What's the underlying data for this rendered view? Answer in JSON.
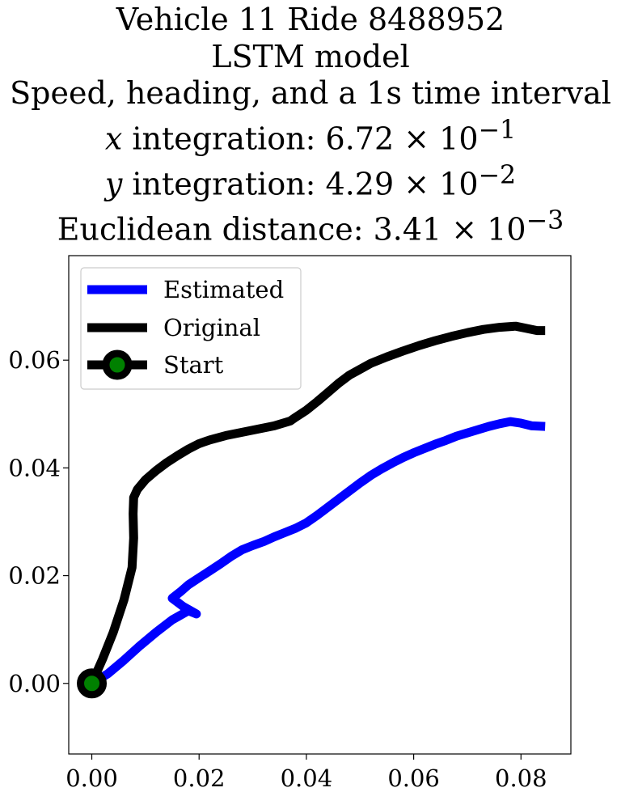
{
  "title_lines": {
    "line1": "Vehicle 11 Ride 8488952",
    "line2": "LSTM model",
    "line3": "Speed, heading, and a 1s time interval",
    "line4_var": "x",
    "line4_text": " integration: 6.72 × 10",
    "line4_exp": "−1",
    "line5_var": "y",
    "line5_text": " integration: 4.29 × 10",
    "line5_exp": "−2",
    "line6_text": "Euclidean distance: 3.41 × 10",
    "line6_exp": "−3"
  },
  "chart_data": {
    "type": "line",
    "title": "Vehicle 11 Ride 8488952 LSTM model Speed, heading, and a 1s time interval x integration: 6.72×10^-1 y integration: 4.29×10^-2 Euclidean distance: 3.41×10^-3",
    "xlabel": "",
    "ylabel": "",
    "xlim": [
      -0.0043,
      0.0893
    ],
    "ylim": [
      -0.0131,
      0.0794
    ],
    "xticks": [
      0.0,
      0.02,
      0.04,
      0.06,
      0.08
    ],
    "xtick_labels": [
      "0.00",
      "0.02",
      "0.04",
      "0.06",
      "0.08"
    ],
    "yticks": [
      0.0,
      0.02,
      0.04,
      0.06
    ],
    "ytick_labels": [
      "0.00",
      "0.02",
      "0.04",
      "0.06"
    ],
    "grid": false,
    "legend_position": "top-left",
    "series": [
      {
        "name": "Estimated",
        "color": "#0000ff",
        "x": [
          0.0,
          0.003,
          0.006,
          0.009,
          0.012,
          0.015,
          0.018,
          0.0195,
          0.017,
          0.015,
          0.0165,
          0.018,
          0.02,
          0.022,
          0.024,
          0.026,
          0.028,
          0.03,
          0.032,
          0.034,
          0.036,
          0.038,
          0.04,
          0.042,
          0.044,
          0.046,
          0.048,
          0.05,
          0.052,
          0.054,
          0.056,
          0.058,
          0.06,
          0.062,
          0.064,
          0.066,
          0.068,
          0.07,
          0.072,
          0.074,
          0.076,
          0.078,
          0.08,
          0.082,
          0.0845
        ],
        "y": [
          0.0,
          0.0018,
          0.0043,
          0.007,
          0.0095,
          0.0118,
          0.0135,
          0.0129,
          0.0143,
          0.0158,
          0.017,
          0.0183,
          0.0196,
          0.0209,
          0.0222,
          0.0236,
          0.0248,
          0.0256,
          0.0263,
          0.0272,
          0.028,
          0.0288,
          0.0298,
          0.0312,
          0.0327,
          0.0342,
          0.0357,
          0.0372,
          0.0386,
          0.0398,
          0.0409,
          0.0419,
          0.0428,
          0.0436,
          0.0444,
          0.0451,
          0.0459,
          0.0465,
          0.0471,
          0.0477,
          0.0482,
          0.0486,
          0.0483,
          0.0478,
          0.0477
        ]
      },
      {
        "name": "Original",
        "color": "#000000",
        "x": [
          0.0,
          0.002,
          0.004,
          0.006,
          0.0075,
          0.0078,
          0.0077,
          0.0078,
          0.0085,
          0.01,
          0.012,
          0.014,
          0.016,
          0.018,
          0.02,
          0.022,
          0.025,
          0.028,
          0.031,
          0.034,
          0.037,
          0.038,
          0.04,
          0.042,
          0.044,
          0.046,
          0.048,
          0.05,
          0.052,
          0.055,
          0.058,
          0.061,
          0.064,
          0.067,
          0.07,
          0.073,
          0.076,
          0.079,
          0.081,
          0.083,
          0.0845
        ],
        "y": [
          0.0,
          0.0045,
          0.0095,
          0.0155,
          0.0215,
          0.027,
          0.0315,
          0.0345,
          0.036,
          0.0378,
          0.0395,
          0.041,
          0.0423,
          0.0435,
          0.0445,
          0.0452,
          0.046,
          0.0466,
          0.0472,
          0.0478,
          0.0487,
          0.0494,
          0.0507,
          0.0523,
          0.054,
          0.0557,
          0.0572,
          0.0583,
          0.0594,
          0.0606,
          0.0617,
          0.0627,
          0.0636,
          0.0644,
          0.0651,
          0.0657,
          0.0661,
          0.0663,
          0.0659,
          0.0655,
          0.0655
        ]
      },
      {
        "name": "Start",
        "color": "#000000",
        "marker_fill": "#008000",
        "x": [
          0.0
        ],
        "y": [
          0.0
        ]
      }
    ]
  }
}
